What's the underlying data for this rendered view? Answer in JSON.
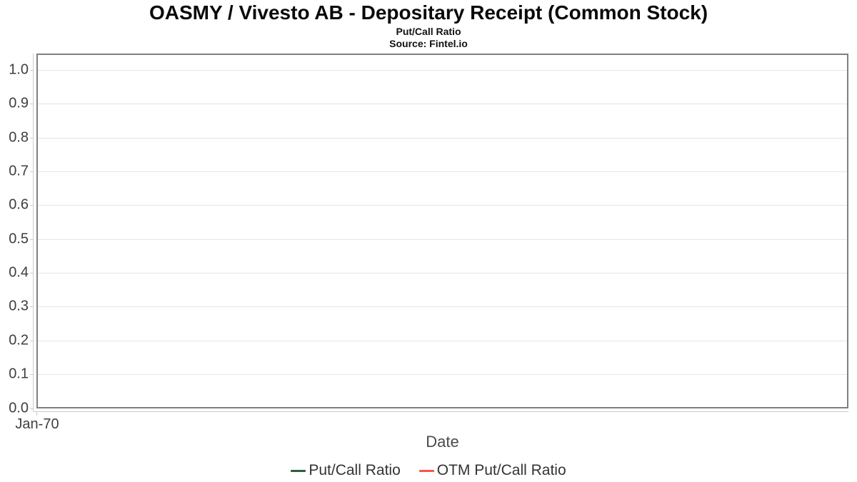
{
  "chart_data": {
    "type": "line",
    "title": "OASMY / Vivesto AB - Depositary Receipt (Common Stock)",
    "subtitle": "Put/Call Ratio",
    "source": "Source: Fintel.io",
    "xlabel": "Date",
    "ylabel": "",
    "ylim": [
      0.0,
      1.0
    ],
    "yticks": [
      "1.0",
      "0.9",
      "0.8",
      "0.7",
      "0.6",
      "0.5",
      "0.4",
      "0.3",
      "0.2",
      "0.1",
      "0.0"
    ],
    "xticks": [
      "Jan-70"
    ],
    "grid": "horizontal-only",
    "legend_position": "bottom-center",
    "plot_area_empty": true,
    "series": [
      {
        "name": "Put/Call Ratio",
        "color": "#2f5d3a",
        "points": []
      },
      {
        "name": "OTM Put/Call Ratio",
        "color": "#f8534e",
        "points": []
      }
    ]
  },
  "colors": {
    "plot_border": "#7f7f7f",
    "gridline": "#e5e5e5",
    "axis_line": "#cccccc",
    "tick_label": "#3e3e3e",
    "axis_title": "#4a4a4a",
    "legend_text": "#333333",
    "background": "#ffffff"
  }
}
